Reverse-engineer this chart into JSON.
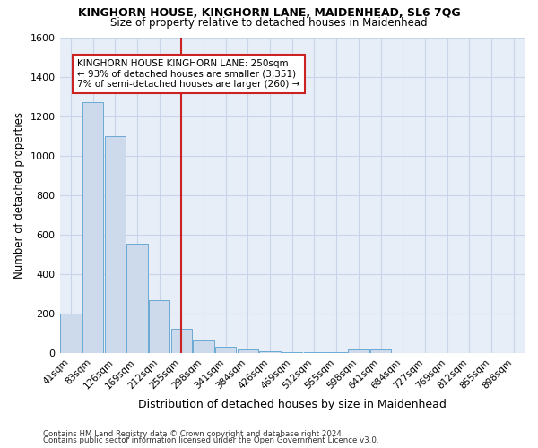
{
  "title": "KINGHORN HOUSE, KINGHORN LANE, MAIDENHEAD, SL6 7QG",
  "subtitle": "Size of property relative to detached houses in Maidenhead",
  "xlabel": "Distribution of detached houses by size in Maidenhead",
  "ylabel": "Number of detached properties",
  "footnote1": "Contains HM Land Registry data © Crown copyright and database right 2024.",
  "footnote2": "Contains public sector information licensed under the Open Government Licence v3.0.",
  "categories": [
    "41sqm",
    "83sqm",
    "126sqm",
    "169sqm",
    "212sqm",
    "255sqm",
    "298sqm",
    "341sqm",
    "384sqm",
    "426sqm",
    "469sqm",
    "512sqm",
    "555sqm",
    "598sqm",
    "641sqm",
    "684sqm",
    "727sqm",
    "769sqm",
    "812sqm",
    "855sqm",
    "898sqm"
  ],
  "values": [
    200,
    1270,
    1100,
    555,
    270,
    125,
    65,
    35,
    20,
    12,
    8,
    6,
    5,
    18,
    18,
    0,
    0,
    0,
    0,
    0,
    0
  ],
  "bar_color": "#ccdaeb",
  "bar_edge_color": "#6aaad4",
  "grid_color": "#c8d4e8",
  "background_color": "#ffffff",
  "plot_bg_color": "#e8eef8",
  "vline_x": 5,
  "vline_color": "#cc2222",
  "annotation_text": "KINGHORN HOUSE KINGHORN LANE: 250sqm\n← 93% of detached houses are smaller (3,351)\n7% of semi-detached houses are larger (260) →",
  "annotation_box_color": "white",
  "annotation_box_edge": "#cc2222",
  "ylim": [
    0,
    1600
  ],
  "yticks": [
    0,
    200,
    400,
    600,
    800,
    1000,
    1200,
    1400,
    1600
  ]
}
